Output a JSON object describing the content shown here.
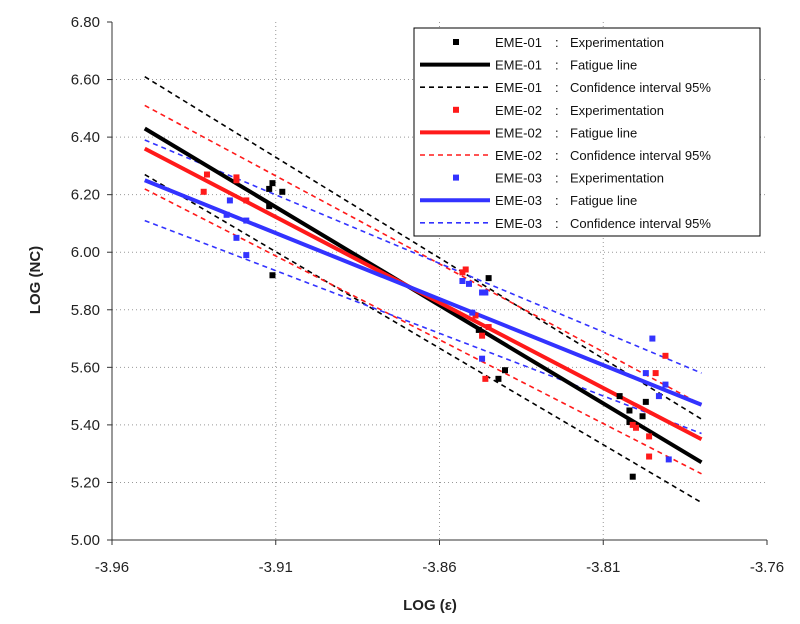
{
  "chart_data": {
    "type": "scatter",
    "title": "",
    "xlabel": "LOG (ε)",
    "ylabel": "LOG (NC)",
    "xlim": [
      -3.96,
      -3.76
    ],
    "ylim": [
      5.0,
      6.8
    ],
    "xticks": [
      "-3.96",
      "-3.91",
      "-3.86",
      "-3.81",
      "-3.76"
    ],
    "yticks": [
      "5.00",
      "5.20",
      "5.40",
      "5.60",
      "5.80",
      "6.00",
      "6.20",
      "6.40",
      "6.60",
      "6.80"
    ],
    "grid": "dotted",
    "legend_position": "top-right",
    "legend": [
      {
        "series": "EME-01",
        "sep": ":",
        "label": "Experimentation",
        "kind": "marker",
        "color": "#000000"
      },
      {
        "series": "EME-01",
        "sep": ":",
        "label": "Fatigue line",
        "kind": "line",
        "color": "#000000"
      },
      {
        "series": "EME-01",
        "sep": ":",
        "label": "Confidence interval 95%",
        "kind": "dash",
        "color": "#000000"
      },
      {
        "series": "EME-02",
        "sep": ":",
        "label": "Experimentation",
        "kind": "marker",
        "color": "#ff1a1a"
      },
      {
        "series": "EME-02",
        "sep": ":",
        "label": "Fatigue line",
        "kind": "line",
        "color": "#ff1a1a"
      },
      {
        "series": "EME-02",
        "sep": ":",
        "label": "Confidence interval 95%",
        "kind": "dash",
        "color": "#ff1a1a"
      },
      {
        "series": "EME-03",
        "sep": ":",
        "label": "Experimentation",
        "kind": "marker",
        "color": "#3333ff"
      },
      {
        "series": "EME-03",
        "sep": ":",
        "label": "Fatigue line",
        "kind": "line",
        "color": "#3333ff"
      },
      {
        "series": "EME-03",
        "sep": ":",
        "label": "Confidence interval 95%",
        "kind": "dash",
        "color": "#3333ff"
      }
    ],
    "series": [
      {
        "name": "EME-01",
        "color": "#000000",
        "points": [
          [
            -3.912,
            6.22
          ],
          [
            -3.911,
            6.24
          ],
          [
            -3.908,
            6.21
          ],
          [
            -3.912,
            6.16
          ],
          [
            -3.911,
            5.92
          ],
          [
            -3.845,
            5.91
          ],
          [
            -3.848,
            5.73
          ],
          [
            -3.842,
            5.56
          ],
          [
            -3.84,
            5.59
          ],
          [
            -3.805,
            5.5
          ],
          [
            -3.802,
            5.45
          ],
          [
            -3.802,
            5.41
          ],
          [
            -3.798,
            5.43
          ],
          [
            -3.797,
            5.48
          ],
          [
            -3.801,
            5.22
          ]
        ],
        "fit": {
          "x": [
            -3.95,
            -3.78
          ],
          "y": [
            6.43,
            5.27
          ]
        },
        "ci_upper": {
          "x": [
            -3.95,
            -3.78
          ],
          "y": [
            6.61,
            5.42
          ]
        },
        "ci_lower": {
          "x": [
            -3.95,
            -3.78
          ],
          "y": [
            6.27,
            5.13
          ]
        }
      },
      {
        "name": "EME-02",
        "color": "#ff1a1a",
        "points": [
          [
            -3.932,
            6.21
          ],
          [
            -3.931,
            6.27
          ],
          [
            -3.922,
            6.26
          ],
          [
            -3.922,
            6.25
          ],
          [
            -3.919,
            6.18
          ],
          [
            -3.853,
            5.93
          ],
          [
            -3.852,
            5.94
          ],
          [
            -3.849,
            5.78
          ],
          [
            -3.847,
            5.71
          ],
          [
            -3.845,
            5.74
          ],
          [
            -3.846,
            5.56
          ],
          [
            -3.8,
            5.39
          ],
          [
            -3.801,
            5.4
          ],
          [
            -3.796,
            5.36
          ],
          [
            -3.796,
            5.29
          ],
          [
            -3.794,
            5.58
          ],
          [
            -3.791,
            5.64
          ]
        ],
        "fit": {
          "x": [
            -3.95,
            -3.78
          ],
          "y": [
            6.36,
            5.35
          ]
        },
        "ci_upper": {
          "x": [
            -3.95,
            -3.78
          ],
          "y": [
            6.51,
            5.47
          ]
        },
        "ci_lower": {
          "x": [
            -3.95,
            -3.78
          ],
          "y": [
            6.22,
            5.23
          ]
        }
      },
      {
        "name": "EME-03",
        "color": "#3333ff",
        "points": [
          [
            -3.925,
            6.13
          ],
          [
            -3.924,
            6.18
          ],
          [
            -3.922,
            6.05
          ],
          [
            -3.919,
            5.99
          ],
          [
            -3.919,
            6.11
          ],
          [
            -3.853,
            5.9
          ],
          [
            -3.851,
            5.89
          ],
          [
            -3.847,
            5.86
          ],
          [
            -3.846,
            5.86
          ],
          [
            -3.847,
            5.63
          ],
          [
            -3.85,
            5.79
          ],
          [
            -3.797,
            5.58
          ],
          [
            -3.795,
            5.7
          ],
          [
            -3.793,
            5.5
          ],
          [
            -3.791,
            5.54
          ],
          [
            -3.79,
            5.28
          ]
        ],
        "fit": {
          "x": [
            -3.95,
            -3.78
          ],
          "y": [
            6.25,
            5.47
          ]
        },
        "ci_upper": {
          "x": [
            -3.95,
            -3.78
          ],
          "y": [
            6.39,
            5.58
          ]
        },
        "ci_lower": {
          "x": [
            -3.95,
            -3.78
          ],
          "y": [
            6.11,
            5.37
          ]
        }
      }
    ]
  }
}
